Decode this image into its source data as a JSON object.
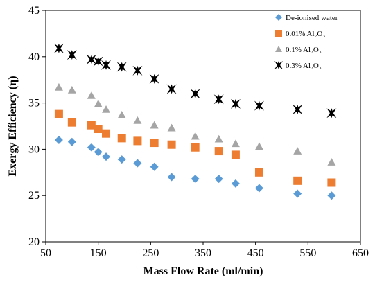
{
  "chart_data": {
    "type": "scatter",
    "title": "",
    "xlabel": "Mass Flow Rate (ml/min)",
    "ylabel": "Exergy Efficiency (η)",
    "xlim": [
      50,
      650
    ],
    "ylim": [
      20,
      45
    ],
    "xticks": [
      50,
      150,
      250,
      350,
      450,
      550,
      650
    ],
    "yticks": [
      20,
      25,
      30,
      35,
      40,
      45
    ],
    "grid": false,
    "legend_position": "top-right",
    "series": [
      {
        "name": "De-ionised water",
        "marker": "diamond",
        "color": "#5b9bd5",
        "x": [
          75,
          100,
          137,
          150,
          165,
          195,
          225,
          257,
          290,
          335,
          380,
          412,
          457,
          530,
          595
        ],
        "y": [
          31.0,
          30.8,
          30.2,
          29.7,
          29.2,
          28.9,
          28.5,
          28.1,
          27.0,
          26.8,
          26.8,
          26.3,
          25.8,
          25.2,
          25.0
        ]
      },
      {
        "name": "0.01% Al₂O₃",
        "marker": "square",
        "color": "#ed7d31",
        "x": [
          75,
          100,
          137,
          150,
          165,
          195,
          225,
          257,
          290,
          335,
          380,
          412,
          457,
          530,
          595
        ],
        "y": [
          33.8,
          32.9,
          32.6,
          32.2,
          31.7,
          31.2,
          30.9,
          30.7,
          30.5,
          30.2,
          29.8,
          29.4,
          27.5,
          26.6,
          26.4
        ]
      },
      {
        "name": "0.1% Al₂O₃",
        "marker": "triangle",
        "color": "#a5a5a5",
        "x": [
          75,
          100,
          137,
          150,
          165,
          195,
          225,
          257,
          290,
          335,
          380,
          412,
          457,
          530,
          595
        ],
        "y": [
          36.7,
          36.4,
          35.8,
          34.9,
          34.3,
          33.7,
          33.1,
          32.6,
          32.3,
          31.4,
          31.1,
          30.6,
          30.3,
          29.8,
          28.6
        ]
      },
      {
        "name": "0.3% Al₂O₃",
        "marker": "star",
        "color": "#000000",
        "x": [
          75,
          100,
          137,
          150,
          165,
          195,
          225,
          257,
          290,
          335,
          380,
          412,
          457,
          530,
          595
        ],
        "y": [
          40.9,
          40.2,
          39.7,
          39.5,
          39.1,
          38.9,
          38.5,
          37.6,
          36.5,
          36.0,
          35.4,
          34.9,
          34.7,
          34.3,
          33.9
        ]
      }
    ]
  }
}
